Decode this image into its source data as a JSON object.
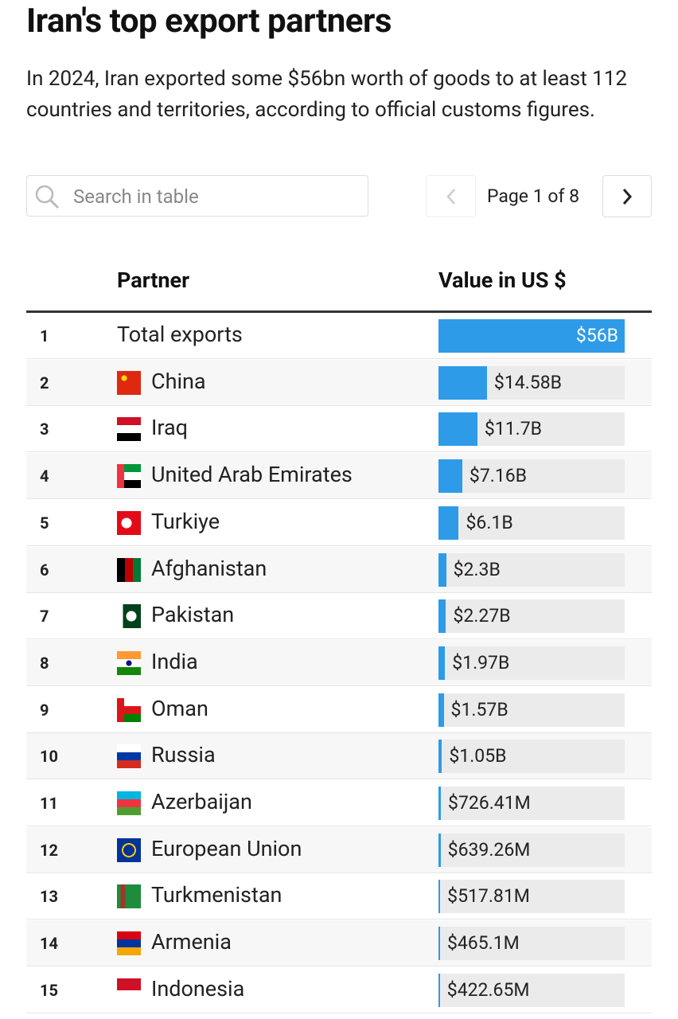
{
  "header": {
    "title": "Iran's top export partners",
    "subtitle": "In 2024, Iran exported some $56bn worth of goods to at least 112 countries and territories, according to official customs figures."
  },
  "search": {
    "placeholder": "Search in table"
  },
  "pagination": {
    "label": "Page 1 of 8"
  },
  "table": {
    "columns": [
      "Partner",
      "Value in US $"
    ],
    "rows": [
      {
        "rank": 1,
        "partner": "Total exports",
        "value": 56000000000,
        "value_label": "$56B"
      },
      {
        "rank": 2,
        "partner": "China",
        "value": 14580000000,
        "value_label": "$14.58B"
      },
      {
        "rank": 3,
        "partner": "Iraq",
        "value": 11700000000,
        "value_label": "$11.7B"
      },
      {
        "rank": 4,
        "partner": "United Arab Emirates",
        "value": 7160000000,
        "value_label": "$7.16B"
      },
      {
        "rank": 5,
        "partner": "Turkiye",
        "value": 6100000000,
        "value_label": "$6.1B"
      },
      {
        "rank": 6,
        "partner": "Afghanistan",
        "value": 2300000000,
        "value_label": "$2.3B"
      },
      {
        "rank": 7,
        "partner": "Pakistan",
        "value": 2270000000,
        "value_label": "$2.27B"
      },
      {
        "rank": 8,
        "partner": "India",
        "value": 1970000000,
        "value_label": "$1.97B"
      },
      {
        "rank": 9,
        "partner": "Oman",
        "value": 1570000000,
        "value_label": "$1.57B"
      },
      {
        "rank": 10,
        "partner": "Russia",
        "value": 1050000000,
        "value_label": "$1.05B"
      },
      {
        "rank": 11,
        "partner": "Azerbaijan",
        "value": 726410000,
        "value_label": "$726.41M"
      },
      {
        "rank": 12,
        "partner": "European Union",
        "value": 639260000,
        "value_label": "$639.26M"
      },
      {
        "rank": 13,
        "partner": "Turkmenistan",
        "value": 517810000,
        "value_label": "$517.81M"
      },
      {
        "rank": 14,
        "partner": "Armenia",
        "value": 465100000,
        "value_label": "$465.1M"
      },
      {
        "rank": 15,
        "partner": "Indonesia",
        "value": 422650000,
        "value_label": "$422.65M"
      }
    ]
  }
}
